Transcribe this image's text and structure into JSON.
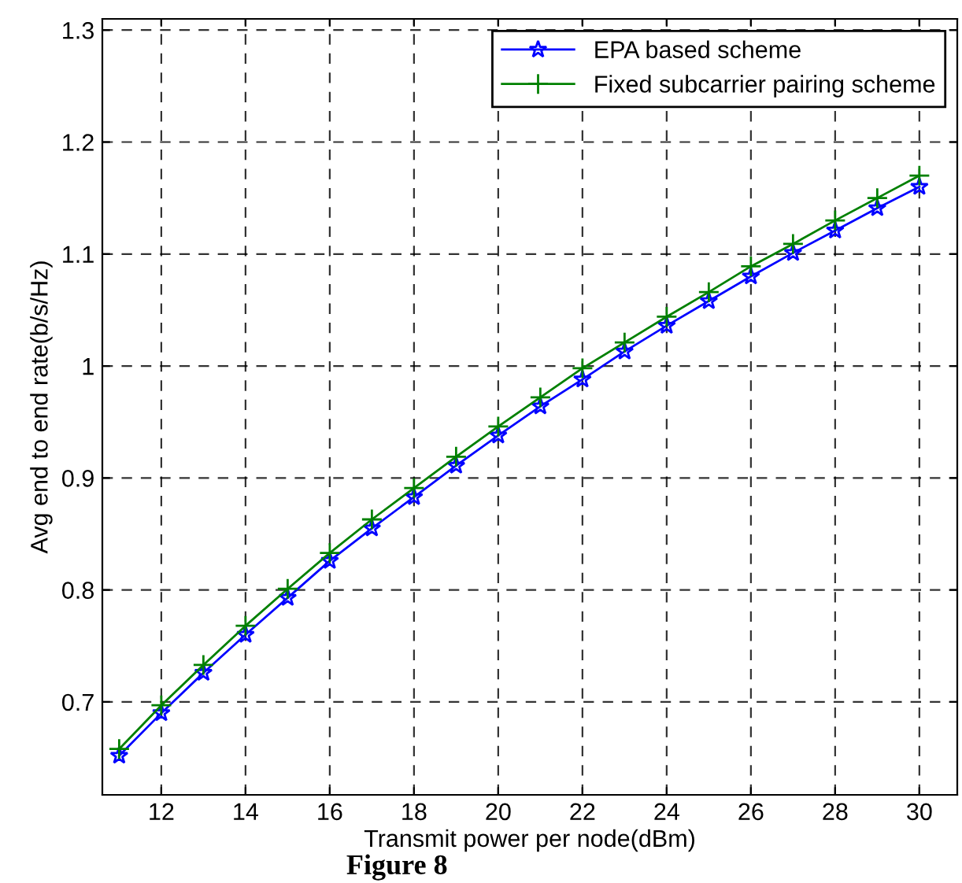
{
  "chart_data": {
    "type": "line",
    "xlabel": "Transmit power per node(dBm)",
    "ylabel": "Avg end to end rate(b/s/Hz)",
    "x": [
      11,
      12,
      13,
      14,
      15,
      16,
      17,
      18,
      19,
      20,
      21,
      22,
      23,
      24,
      25,
      26,
      27,
      28,
      29,
      30
    ],
    "series": [
      {
        "name": "EPA based scheme",
        "color": "#0000ff",
        "marker": "star",
        "values": [
          0.652,
          0.69,
          0.726,
          0.76,
          0.793,
          0.826,
          0.855,
          0.883,
          0.911,
          0.938,
          0.964,
          0.988,
          1.013,
          1.036,
          1.058,
          1.08,
          1.101,
          1.121,
          1.141,
          1.16
        ]
      },
      {
        "name": "Fixed subcarrier pairing scheme",
        "color": "#008000",
        "marker": "cross",
        "values": [
          0.658,
          0.697,
          0.733,
          0.768,
          0.801,
          0.833,
          0.863,
          0.891,
          0.919,
          0.946,
          0.972,
          0.998,
          1.021,
          1.044,
          1.066,
          1.089,
          1.109,
          1.13,
          1.15,
          1.17
        ]
      }
    ],
    "xlim": [
      10.6,
      30.9
    ],
    "xticks": [
      12,
      14,
      16,
      18,
      20,
      22,
      24,
      26,
      28,
      30
    ],
    "ylim": [
      0.617,
      1.31
    ],
    "yticks": [
      {
        "value": 0.7,
        "label": "0.7"
      },
      {
        "value": 0.8,
        "label": "0.8"
      },
      {
        "value": 0.9,
        "label": "0.9"
      },
      {
        "value": 1,
        "label": "1"
      },
      {
        "value": 1.1,
        "label": "1.1"
      },
      {
        "value": 1.2,
        "label": "1.2"
      },
      {
        "value": 1.3,
        "label": "1.3"
      }
    ],
    "grid": true,
    "legend": "top right",
    "line_style": "solid",
    "annotations": [
      "Figure 8"
    ]
  }
}
